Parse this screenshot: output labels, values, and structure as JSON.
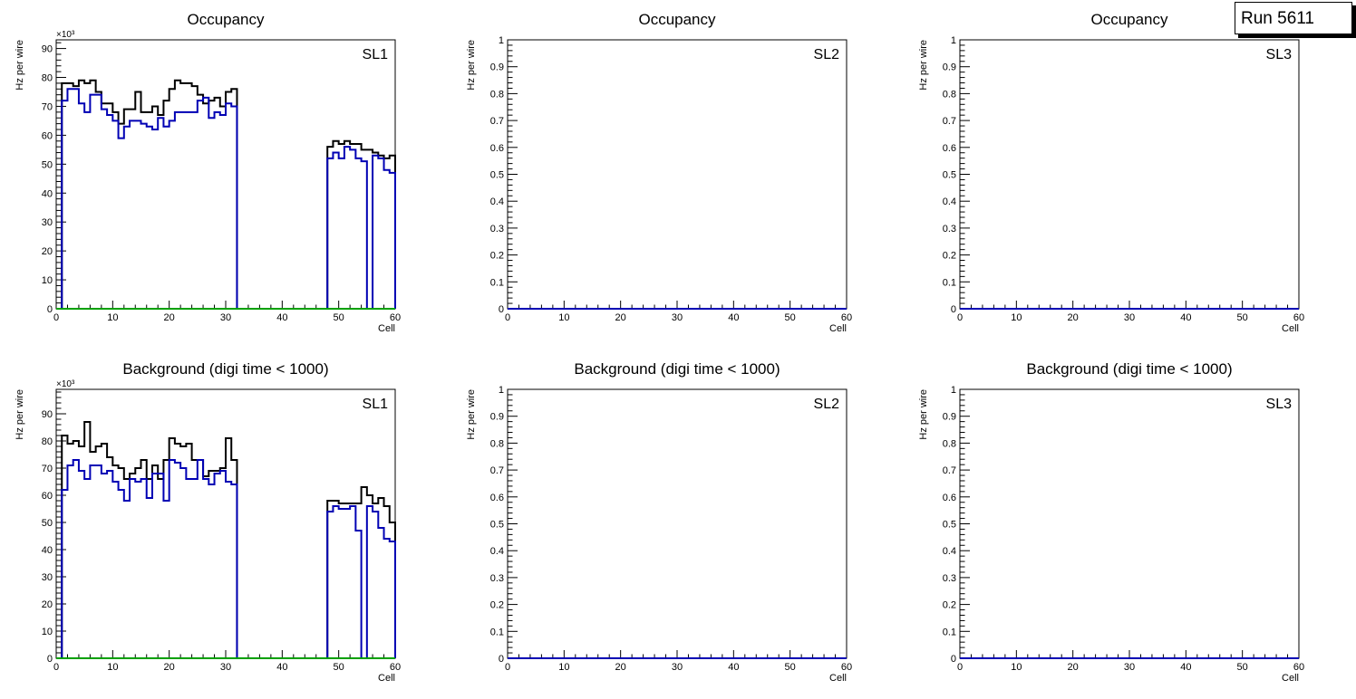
{
  "run_label": "Run 5611",
  "colors": {
    "total": "#000000",
    "blue": "#0000b4",
    "green": "#00a000",
    "red": "#c80000"
  },
  "chart_data": [
    {
      "type": "histogram",
      "title": "Occupancy",
      "ylabel": "Hz per wire",
      "xlabel": "Cell",
      "label": "SL1",
      "exponent": "×10³",
      "xlim": [
        0,
        60
      ],
      "ylim": [
        0,
        93000
      ],
      "x_ticks": [
        0,
        10,
        20,
        30,
        40,
        50,
        60
      ],
      "y_ticks": [
        0,
        10,
        20,
        30,
        40,
        50,
        60,
        70,
        80,
        90
      ],
      "series": [
        {
          "color": "#000000",
          "values": [
            0,
            78,
            78,
            77,
            79,
            78,
            79,
            75,
            71,
            71,
            68,
            64,
            69,
            69,
            75,
            68,
            68,
            70,
            67,
            72,
            76,
            79,
            78,
            78,
            77,
            74,
            71,
            72,
            73,
            70,
            75,
            76,
            0,
            0,
            0,
            0,
            0,
            0,
            0,
            0,
            0,
            0,
            0,
            0,
            0,
            0,
            0,
            0,
            56,
            58,
            57,
            58,
            57,
            57,
            55,
            55,
            54,
            53,
            52,
            53
          ]
        },
        {
          "color": "#0000b4",
          "values": [
            0,
            72,
            76,
            76,
            71,
            68,
            74,
            74,
            69,
            67,
            65,
            59,
            63,
            65,
            65,
            64,
            63,
            62,
            66,
            63,
            65,
            68,
            68,
            68,
            68,
            72,
            73,
            66,
            68,
            67,
            71,
            70,
            0,
            0,
            0,
            0,
            0,
            0,
            0,
            0,
            0,
            0,
            0,
            0,
            0,
            0,
            0,
            0,
            52,
            54,
            52,
            56,
            55,
            52,
            51,
            0,
            53,
            52,
            48,
            47
          ]
        },
        {
          "color": "#00a000",
          "values": [
            0,
            0,
            0,
            0,
            0,
            0,
            0,
            0,
            0,
            0,
            0,
            0,
            0,
            0,
            0,
            0,
            0,
            0,
            0,
            0,
            0,
            0,
            0,
            0,
            0,
            0,
            0,
            0,
            0,
            0,
            0,
            0,
            0,
            0,
            0,
            0,
            0,
            0,
            0,
            0,
            0,
            0,
            0,
            0,
            0,
            0,
            0,
            0,
            0,
            0,
            0,
            0,
            0,
            0,
            0,
            0,
            0,
            0,
            0,
            0
          ]
        }
      ]
    },
    {
      "type": "histogram",
      "title": "Occupancy",
      "ylabel": "Hz per wire",
      "xlabel": "Cell",
      "label": "SL2",
      "exponent": "",
      "xlim": [
        0,
        60
      ],
      "ylim": [
        0,
        1
      ],
      "x_ticks": [
        0,
        10,
        20,
        30,
        40,
        50,
        60
      ],
      "y_ticks": [
        0,
        0.1,
        0.2,
        0.3,
        0.4,
        0.5,
        0.6,
        0.7,
        0.8,
        0.9,
        1
      ],
      "series": [
        {
          "color": "#0000b4",
          "values": []
        }
      ]
    },
    {
      "type": "histogram",
      "title": "Occupancy",
      "ylabel": "Hz per wire",
      "xlabel": "Cell",
      "label": "SL3",
      "exponent": "",
      "xlim": [
        0,
        60
      ],
      "ylim": [
        0,
        1
      ],
      "x_ticks": [
        0,
        10,
        20,
        30,
        40,
        50,
        60
      ],
      "y_ticks": [
        0,
        0.1,
        0.2,
        0.3,
        0.4,
        0.5,
        0.6,
        0.7,
        0.8,
        0.9,
        1
      ],
      "series": [
        {
          "color": "#0000b4",
          "values": []
        }
      ]
    },
    {
      "type": "histogram",
      "title": "Background (digi time < 1000)",
      "ylabel": "Hz per wire",
      "xlabel": "Cell",
      "label": "SL1",
      "exponent": "×10³",
      "xlim": [
        0,
        60
      ],
      "ylim": [
        0,
        99000
      ],
      "x_ticks": [
        0,
        10,
        20,
        30,
        40,
        50,
        60
      ],
      "y_ticks": [
        0,
        10,
        20,
        30,
        40,
        50,
        60,
        70,
        80,
        90
      ],
      "series": [
        {
          "color": "#000000",
          "values": [
            0,
            82,
            79,
            80,
            78,
            87,
            76,
            78,
            79,
            74,
            71,
            70,
            66,
            68,
            70,
            73,
            66,
            71,
            66,
            73,
            81,
            79,
            78,
            79,
            73,
            73,
            67,
            69,
            69,
            70,
            81,
            73,
            0,
            0,
            0,
            0,
            0,
            0,
            0,
            0,
            0,
            0,
            0,
            0,
            0,
            0,
            0,
            0,
            58,
            58,
            57,
            57,
            57,
            57,
            63,
            60,
            57,
            59,
            56,
            50
          ]
        },
        {
          "color": "#0000b4",
          "values": [
            0,
            62,
            71,
            73,
            69,
            66,
            71,
            71,
            68,
            69,
            65,
            62,
            58,
            66,
            65,
            66,
            59,
            68,
            68,
            58,
            73,
            72,
            70,
            66,
            66,
            73,
            66,
            64,
            68,
            69,
            65,
            64,
            0,
            0,
            0,
            0,
            0,
            0,
            0,
            0,
            0,
            0,
            0,
            0,
            0,
            0,
            0,
            0,
            54,
            56,
            55,
            55,
            56,
            47,
            0,
            56,
            54,
            48,
            44,
            43
          ]
        },
        {
          "color": "#00a000",
          "values": [
            0,
            0,
            0,
            0,
            0,
            0,
            0,
            0,
            0,
            0,
            0,
            0,
            0,
            0,
            0,
            0,
            0,
            0,
            0,
            0,
            0,
            0,
            0,
            0,
            0,
            0,
            0,
            0,
            0,
            0,
            0,
            0,
            0,
            0,
            0,
            0,
            0,
            0,
            0,
            0,
            0,
            0,
            0,
            0,
            0,
            0,
            0,
            0,
            0,
            0,
            0,
            0,
            0,
            0,
            0,
            0,
            0,
            0,
            0,
            0
          ]
        }
      ]
    },
    {
      "type": "histogram",
      "title": "Background (digi time < 1000)",
      "ylabel": "Hz per wire",
      "xlabel": "Cell",
      "label": "SL2",
      "exponent": "",
      "xlim": [
        0,
        60
      ],
      "ylim": [
        0,
        1
      ],
      "x_ticks": [
        0,
        10,
        20,
        30,
        40,
        50,
        60
      ],
      "y_ticks": [
        0,
        0.1,
        0.2,
        0.3,
        0.4,
        0.5,
        0.6,
        0.7,
        0.8,
        0.9,
        1
      ],
      "series": [
        {
          "color": "#0000b4",
          "values": []
        }
      ]
    },
    {
      "type": "histogram",
      "title": "Background (digi time < 1000)",
      "ylabel": "Hz per wire",
      "xlabel": "Cell",
      "label": "SL3",
      "exponent": "",
      "xlim": [
        0,
        60
      ],
      "ylim": [
        0,
        1
      ],
      "x_ticks": [
        0,
        10,
        20,
        30,
        40,
        50,
        60
      ],
      "y_ticks": [
        0,
        0.1,
        0.2,
        0.3,
        0.4,
        0.5,
        0.6,
        0.7,
        0.8,
        0.9,
        1
      ],
      "series": [
        {
          "color": "#0000b4",
          "values": []
        }
      ]
    }
  ]
}
